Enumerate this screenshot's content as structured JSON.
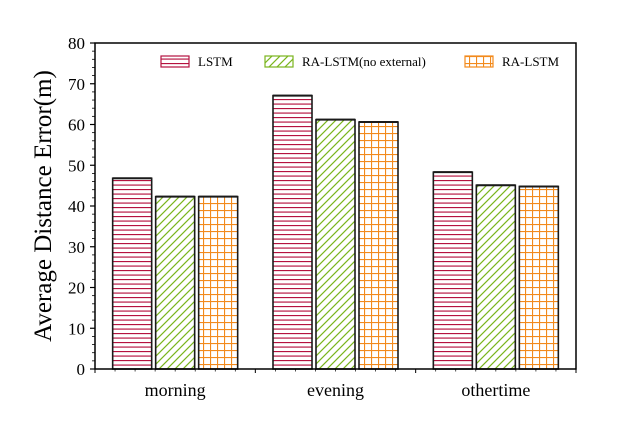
{
  "chart_data": {
    "type": "bar",
    "categories": [
      "morning",
      "evening",
      "othertime"
    ],
    "series": [
      {
        "name": "LSTM",
        "values": [
          46.8,
          67.1,
          48.3
        ],
        "color": "#b5123f",
        "pattern": "horizontal-lines"
      },
      {
        "name": "RA-LSTM(no external)",
        "values": [
          42.3,
          61.2,
          45.1
        ],
        "color": "#7ab51d",
        "pattern": "diagonal-lines"
      },
      {
        "name": "RA-LSTM",
        "values": [
          42.3,
          60.6,
          44.8
        ],
        "color": "#f28a1c",
        "pattern": "grid"
      }
    ],
    "title": "",
    "xlabel": "",
    "ylabel": "Average Distance Error(m)",
    "ylim": [
      0,
      80
    ],
    "yticks": [
      0,
      10,
      20,
      30,
      40,
      50,
      60,
      70,
      80
    ],
    "grid": false,
    "legend_position": "top"
  }
}
